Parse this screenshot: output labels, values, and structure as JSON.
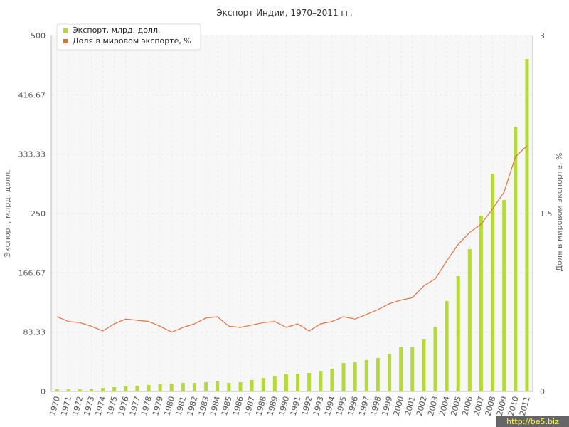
{
  "chart_data": {
    "type": "bar",
    "title": "Экспорт Индии, 1970–2011 гг.",
    "ylabel": "Экспорт, млрд. долл.",
    "y2label": "Доля в мировом экспорте, %",
    "ylim": [
      0,
      500
    ],
    "y2lim": [
      0,
      3
    ],
    "yticks": [
      "0",
      "83.33",
      "166.67",
      "250",
      "333.33",
      "416.67",
      "500"
    ],
    "y2ticks": [
      "0",
      "1.5",
      "3"
    ],
    "grid": true,
    "legend_position": "top-left",
    "categories": [
      "1970",
      "1971",
      "1972",
      "1973",
      "1974",
      "1975",
      "1976",
      "1977",
      "1978",
      "1979",
      "1980",
      "1981",
      "1982",
      "1983",
      "1984",
      "1985",
      "1986",
      "1987",
      "1988",
      "1989",
      "1990",
      "1991",
      "1992",
      "1993",
      "1994",
      "1995",
      "1996",
      "1997",
      "1998",
      "1999",
      "2000",
      "2001",
      "2002",
      "2003",
      "2004",
      "2005",
      "2006",
      "2007",
      "2008",
      "2009",
      "2010",
      "2011"
    ],
    "series": [
      {
        "name": "Экспорт, млрд. долл.",
        "kind": "bar",
        "axis": "left",
        "color": "#b5d93a",
        "values": [
          3,
          3,
          3,
          4,
          5,
          6,
          7,
          8,
          9,
          10,
          11,
          12,
          12,
          13,
          14,
          12,
          13,
          16,
          19,
          21,
          24,
          25,
          26,
          28,
          32,
          40,
          41,
          44,
          47,
          53,
          62,
          62,
          73,
          91,
          127,
          162,
          200,
          247,
          306,
          269,
          372,
          467
        ]
      },
      {
        "name": "Доля в мировом экспорте, %",
        "kind": "line",
        "axis": "right",
        "color": "#e07040",
        "values": [
          0.63,
          0.59,
          0.58,
          0.55,
          0.51,
          0.57,
          0.61,
          0.6,
          0.59,
          0.55,
          0.5,
          0.54,
          0.57,
          0.62,
          0.63,
          0.55,
          0.54,
          0.56,
          0.58,
          0.59,
          0.54,
          0.57,
          0.51,
          0.57,
          0.59,
          0.63,
          0.61,
          0.65,
          0.69,
          0.74,
          0.77,
          0.79,
          0.89,
          0.95,
          1.1,
          1.24,
          1.34,
          1.41,
          1.54,
          1.68,
          1.98,
          2.07
        ]
      }
    ]
  },
  "watermark": "http://be5.biz"
}
